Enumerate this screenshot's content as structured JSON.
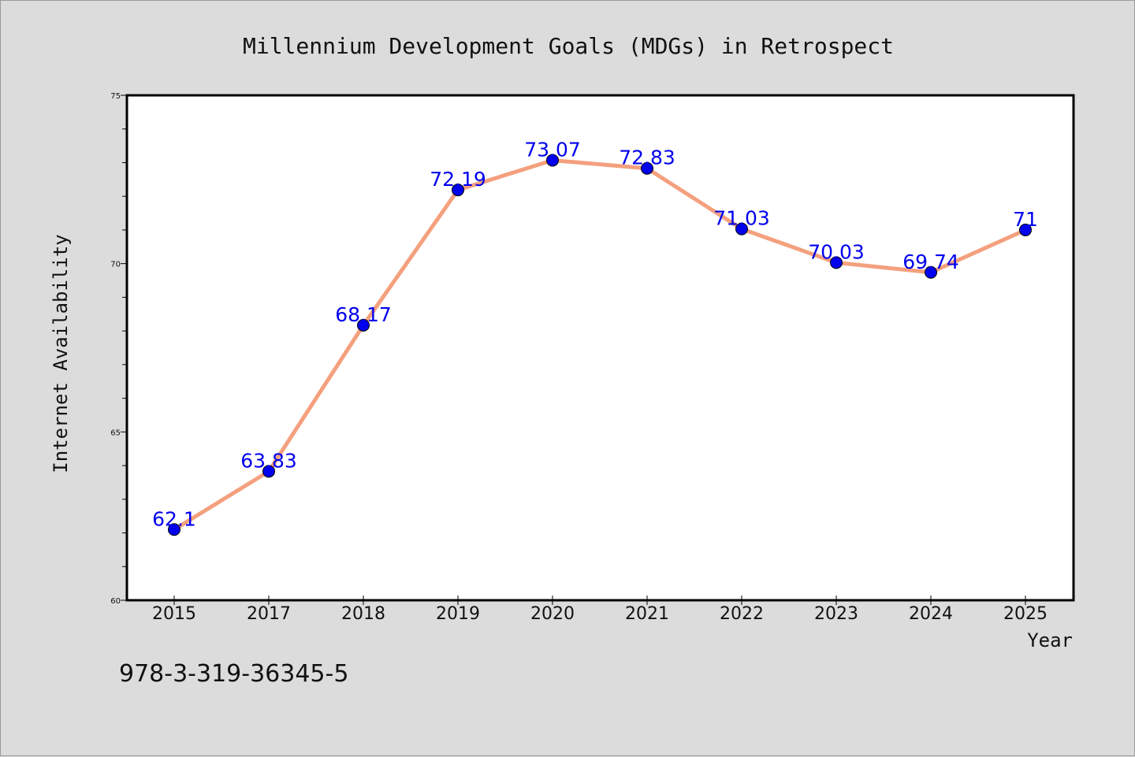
{
  "chart_data": {
    "type": "line",
    "title": "Millennium Development Goals (MDGs) in Retrospect",
    "xlabel": "Year",
    "ylabel": "Internet Availability",
    "categories": [
      "2015",
      "2017",
      "2018",
      "2019",
      "2020",
      "2021",
      "2022",
      "2023",
      "2024",
      "2025"
    ],
    "series": [
      {
        "values": [
          62.1,
          63.83,
          68.17,
          72.19,
          73.07,
          72.83,
          71.03,
          70.03,
          69.74,
          71
        ],
        "labels": [
          "62.1",
          "63.83",
          "68.17",
          "72.19",
          "73.07",
          "72.83",
          "71.03",
          "70.03",
          "69.74",
          "71"
        ]
      }
    ],
    "ylim": [
      60,
      75
    ],
    "yticks": [
      "60",
      "65",
      "70",
      "75"
    ],
    "grid": false,
    "legend": "none",
    "colors": {
      "line": "#f4a07e",
      "marker": "#0000ee",
      "data_label": "#0000ee",
      "plot_background": "#ffffff",
      "figure_background": "#dcdcdc"
    }
  },
  "footnote": "978-3-319-36345-5"
}
